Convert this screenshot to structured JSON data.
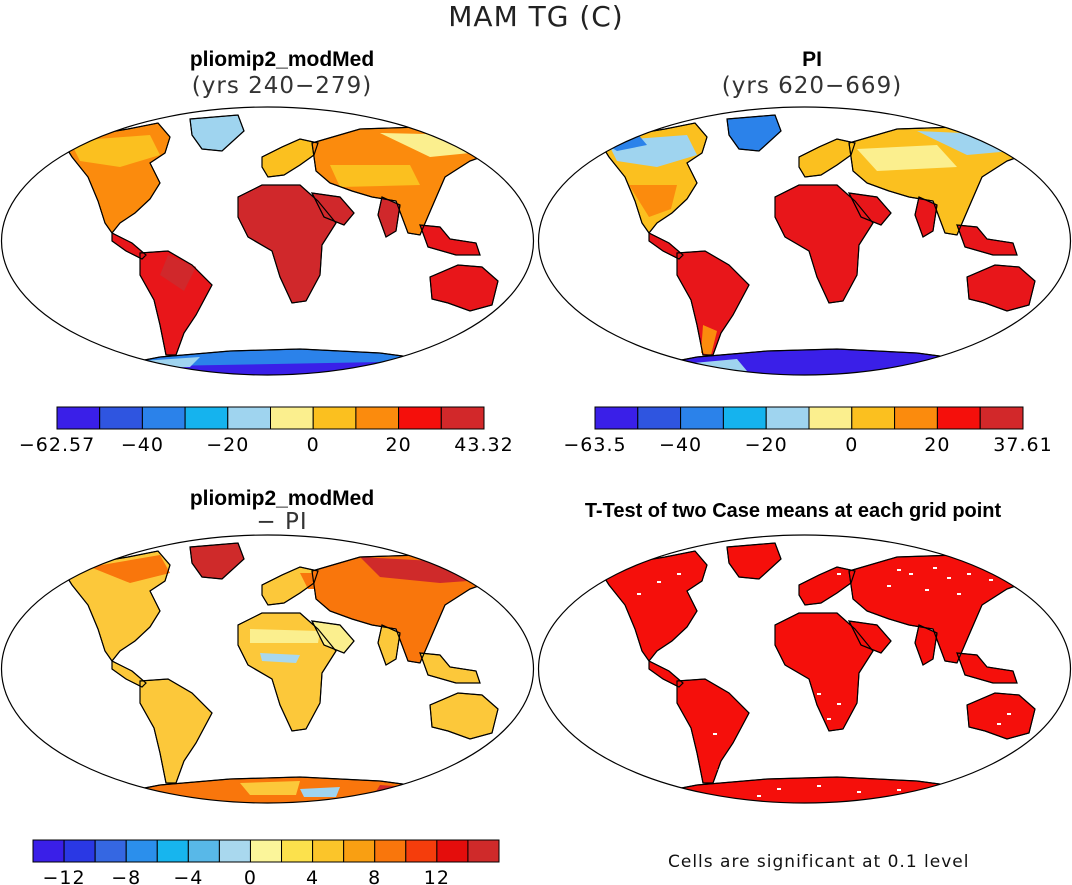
{
  "title": "MAM TG (C)",
  "panels": [
    {
      "id": "p1",
      "title": "pliomip2_modMed",
      "subtitle": "(yrs 240−279)"
    },
    {
      "id": "p2",
      "title": "PI",
      "subtitle": "(yrs 620−669)"
    },
    {
      "id": "p3",
      "title": "pliomip2_modMed",
      "subtitle": "− PI"
    },
    {
      "id": "p4",
      "title": "T-Test of two Case means at each grid point",
      "subtitle": ""
    }
  ],
  "colorbars": [
    {
      "id": "cb1",
      "colors": [
        "#3a1fe8",
        "#2f55e0",
        "#2b82ea",
        "#15b3ee",
        "#9fd4ef",
        "#fbef8e",
        "#fbc01f",
        "#fb8b0d",
        "#f50f0b",
        "#d2282a"
      ],
      "labels": [
        "−62.57",
        "−40",
        "−20",
        "0",
        "20",
        "43.32"
      ]
    },
    {
      "id": "cb2",
      "colors": [
        "#3a1fe8",
        "#2f55e0",
        "#2b82ea",
        "#15b3ee",
        "#9fd4ef",
        "#fbef8e",
        "#fbc01f",
        "#fb8b0d",
        "#f50f0b",
        "#d2282a"
      ],
      "labels": [
        "−63.5",
        "−40",
        "−20",
        "0",
        "20",
        "37.61"
      ]
    },
    {
      "id": "cb3",
      "colors": [
        "#3a1fe8",
        "#2a38e4",
        "#3567e2",
        "#2b8fec",
        "#17b5ee",
        "#58b8e8",
        "#a9d8ee",
        "#fbf59a",
        "#fce14c",
        "#fbc52a",
        "#f99f12",
        "#f9760c",
        "#f53d0c",
        "#e40d0c",
        "#cf2a2a"
      ],
      "labels": [
        "−12",
        "−8",
        "−4",
        "0",
        "4",
        "8",
        "12"
      ]
    }
  ],
  "note": "Cells are significant at 0.1 level",
  "colors": {
    "warm_tropics": "#e8161a",
    "hot_desert": "#d0282b",
    "temperate": "#fb8b0d",
    "cool": "#fbc01f",
    "cold": "#fbef8e",
    "ice_light": "#9fd4ef",
    "ice": "#2b82ea",
    "ice_deep": "#3a1fe8",
    "diff_main": "#fcc83a",
    "diff_light": "#fbef8e",
    "diff_high": "#f9760c",
    "diff_max": "#cf2a2a",
    "ttest": "#f50f0b"
  }
}
